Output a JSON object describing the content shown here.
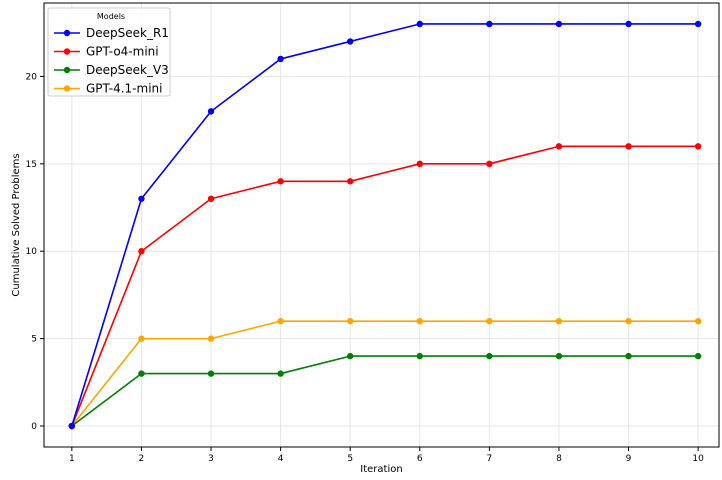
{
  "chart_data": {
    "type": "line",
    "xlabel": "Iteration",
    "ylabel": "Cumulative Solved Problems",
    "x": [
      1,
      2,
      3,
      4,
      5,
      6,
      7,
      8,
      9,
      10
    ],
    "xlim": [
      0.6,
      10.3
    ],
    "ylim": [
      -1.2,
      24.2
    ],
    "yticks": [
      0,
      5,
      10,
      15,
      20
    ],
    "grid": true,
    "legend": {
      "title": "Models",
      "placement": "top-left"
    },
    "series": [
      {
        "name": "DeepSeek_R1",
        "color": "#0000ff",
        "values": [
          0,
          13,
          18,
          21,
          22,
          23,
          23,
          23,
          23,
          23
        ]
      },
      {
        "name": "GPT-o4-mini",
        "color": "#ff0000",
        "values": [
          0,
          10,
          13,
          14,
          14,
          15,
          15,
          16,
          16,
          16
        ]
      },
      {
        "name": "DeepSeek_V3",
        "color": "#008000",
        "values": [
          0,
          3,
          3,
          3,
          4,
          4,
          4,
          4,
          4,
          4
        ]
      },
      {
        "name": "GPT-4.1-mini",
        "color": "#ffa500",
        "values": [
          0,
          5,
          5,
          6,
          6,
          6,
          6,
          6,
          6,
          6
        ]
      }
    ]
  }
}
